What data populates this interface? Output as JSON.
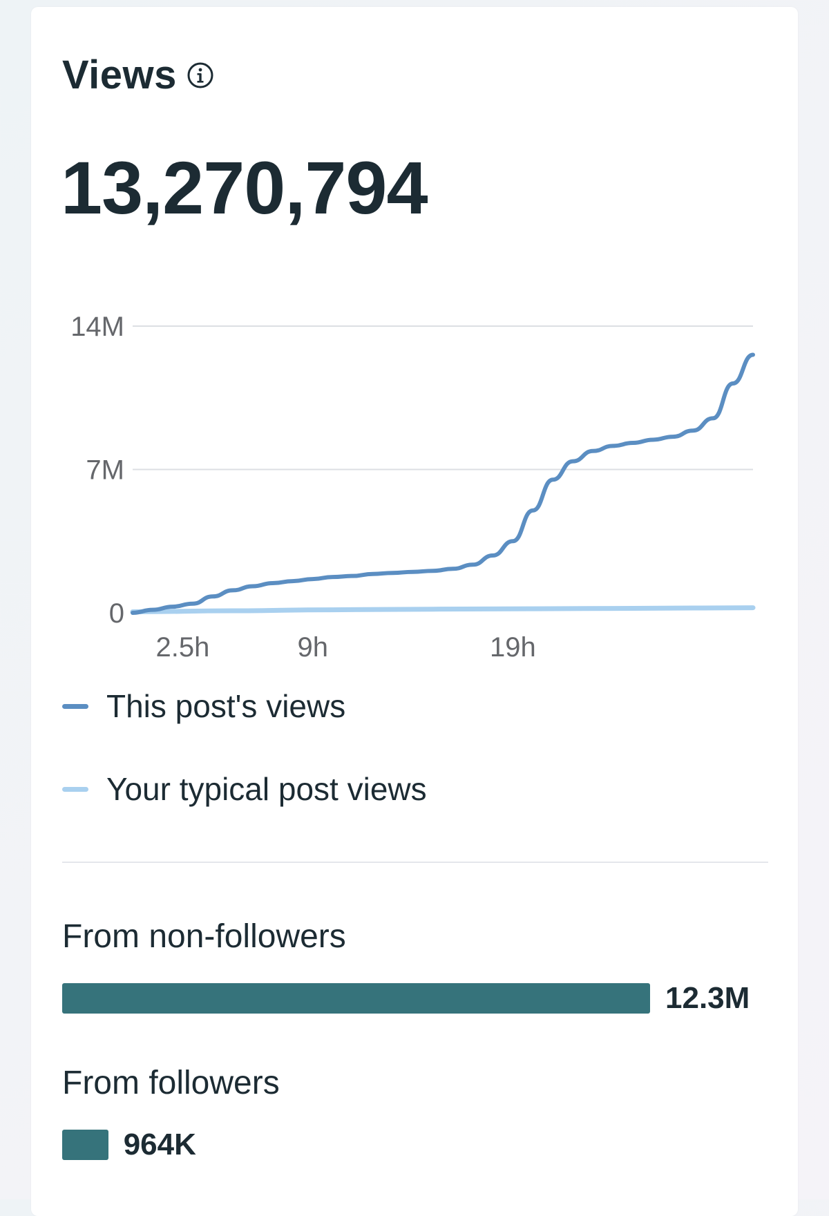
{
  "card": {
    "title": "Views",
    "info_icon": "info-circle-icon",
    "total_views": "13,270,794"
  },
  "chart_data": {
    "type": "line",
    "xlabel": "",
    "ylabel": "",
    "y_ticks": [
      "0",
      "7M",
      "14M"
    ],
    "ylim": [
      0,
      14000000
    ],
    "x_ticks": [
      {
        "label": "2.5h",
        "x": 2.5
      },
      {
        "label": "9h",
        "x": 9
      },
      {
        "label": "19h",
        "x": 19
      }
    ],
    "xlim": [
      0,
      31
    ],
    "grid": true,
    "series": [
      {
        "name": "This post's views",
        "color": "#5b8ec2",
        "points": [
          [
            0,
            0
          ],
          [
            1,
            0.15
          ],
          [
            2,
            0.3
          ],
          [
            3,
            0.45
          ],
          [
            4,
            0.8
          ],
          [
            5,
            1.1
          ],
          [
            6,
            1.3
          ],
          [
            7,
            1.45
          ],
          [
            8,
            1.55
          ],
          [
            9,
            1.65
          ],
          [
            10,
            1.75
          ],
          [
            11,
            1.8
          ],
          [
            12,
            1.9
          ],
          [
            13,
            1.95
          ],
          [
            14,
            2.0
          ],
          [
            15,
            2.05
          ],
          [
            16,
            2.15
          ],
          [
            17,
            2.35
          ],
          [
            18,
            2.8
          ],
          [
            19,
            3.5
          ],
          [
            20,
            5.0
          ],
          [
            21,
            6.5
          ],
          [
            22,
            7.4
          ],
          [
            23,
            7.9
          ],
          [
            24,
            8.15
          ],
          [
            25,
            8.3
          ],
          [
            26,
            8.45
          ],
          [
            27,
            8.6
          ],
          [
            28,
            8.9
          ],
          [
            29,
            9.5
          ],
          [
            30,
            11.2
          ],
          [
            31,
            12.6
          ]
        ]
      },
      {
        "name": "Your typical post views",
        "color": "#a9d0ef",
        "points": [
          [
            0,
            0.05
          ],
          [
            5,
            0.1
          ],
          [
            10,
            0.15
          ],
          [
            15,
            0.18
          ],
          [
            20,
            0.2
          ],
          [
            25,
            0.22
          ],
          [
            31,
            0.25
          ]
        ]
      }
    ]
  },
  "breakdown": {
    "non_followers": {
      "label": "From non-followers",
      "value": "12.3M",
      "value_number": 12300000,
      "color": "#36737b"
    },
    "followers": {
      "label": "From followers",
      "value": "964K",
      "value_number": 964000,
      "color": "#36737b"
    }
  }
}
